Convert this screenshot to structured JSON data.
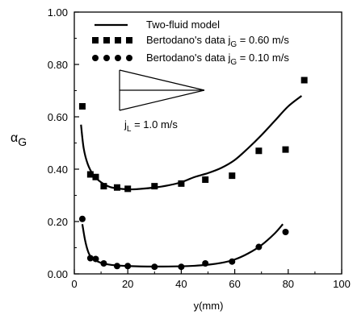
{
  "chart_data": {
    "type": "scatter",
    "title": "",
    "xlabel": "y(mm)",
    "ylabel": {
      "main": "α",
      "sub": "G"
    },
    "xlim": [
      0,
      100
    ],
    "ylim": [
      0,
      1.0
    ],
    "x_ticks": [
      "0",
      "20",
      "40",
      "60",
      "80",
      "100"
    ],
    "y_ticks": [
      "0.00",
      "0.20",
      "0.40",
      "0.60",
      "0.80",
      "1.00"
    ],
    "grid": false,
    "legend_position": "top",
    "legend": [
      {
        "kind": "line",
        "label": "Two-fluid model"
      },
      {
        "kind": "square",
        "label_main": "Bertodano's data j",
        "label_sub": "G",
        "label_tail": " = 0.60 m/s"
      },
      {
        "kind": "circle",
        "label_main": "Bertodano's data j",
        "label_sub": "G",
        "label_tail": " = 0.10 m/s"
      }
    ],
    "annotation": {
      "main": "j",
      "sub": "L",
      "tail": " = 1.0 m/s"
    },
    "series": [
      {
        "name": "Bertodano's data jG = 0.60 m/s",
        "marker": "square",
        "points": [
          [
            3,
            0.64
          ],
          [
            6,
            0.38
          ],
          [
            8,
            0.37
          ],
          [
            11,
            0.335
          ],
          [
            16,
            0.33
          ],
          [
            20,
            0.325
          ],
          [
            30,
            0.335
          ],
          [
            40,
            0.345
          ],
          [
            49,
            0.36
          ],
          [
            59,
            0.375
          ],
          [
            69,
            0.47
          ],
          [
            79,
            0.475
          ],
          [
            86,
            0.74
          ]
        ]
      },
      {
        "name": "Bertodano's data jG = 0.10 m/s",
        "marker": "circle",
        "points": [
          [
            3,
            0.21
          ],
          [
            6,
            0.06
          ],
          [
            8,
            0.057
          ],
          [
            11,
            0.04
          ],
          [
            16,
            0.03
          ],
          [
            20,
            0.03
          ],
          [
            30,
            0.027
          ],
          [
            40,
            0.027
          ],
          [
            49,
            0.04
          ],
          [
            59,
            0.047
          ],
          [
            69,
            0.103
          ],
          [
            79,
            0.16
          ]
        ]
      },
      {
        "name": "Two-fluid model (jG = 0.60 m/s)",
        "marker": "line",
        "points": [
          [
            2.5,
            0.57
          ],
          [
            3.5,
            0.48
          ],
          [
            5,
            0.42
          ],
          [
            7,
            0.38
          ],
          [
            10,
            0.35
          ],
          [
            14,
            0.33
          ],
          [
            20,
            0.323
          ],
          [
            25,
            0.325
          ],
          [
            30,
            0.33
          ],
          [
            35,
            0.338
          ],
          [
            40,
            0.35
          ],
          [
            45,
            0.37
          ],
          [
            50,
            0.385
          ],
          [
            55,
            0.405
          ],
          [
            60,
            0.435
          ],
          [
            65,
            0.48
          ],
          [
            70,
            0.53
          ],
          [
            75,
            0.585
          ],
          [
            80,
            0.64
          ],
          [
            85,
            0.68
          ]
        ]
      },
      {
        "name": "Two-fluid model (jG = 0.10 m/s)",
        "marker": "line",
        "points": [
          [
            3,
            0.19
          ],
          [
            4,
            0.13
          ],
          [
            5,
            0.09
          ],
          [
            6,
            0.068
          ],
          [
            8,
            0.052
          ],
          [
            10,
            0.042
          ],
          [
            14,
            0.034
          ],
          [
            20,
            0.03
          ],
          [
            30,
            0.028
          ],
          [
            40,
            0.029
          ],
          [
            45,
            0.031
          ],
          [
            50,
            0.035
          ],
          [
            55,
            0.042
          ],
          [
            60,
            0.055
          ],
          [
            65,
            0.078
          ],
          [
            70,
            0.11
          ],
          [
            75,
            0.155
          ],
          [
            78,
            0.19
          ]
        ]
      }
    ]
  }
}
